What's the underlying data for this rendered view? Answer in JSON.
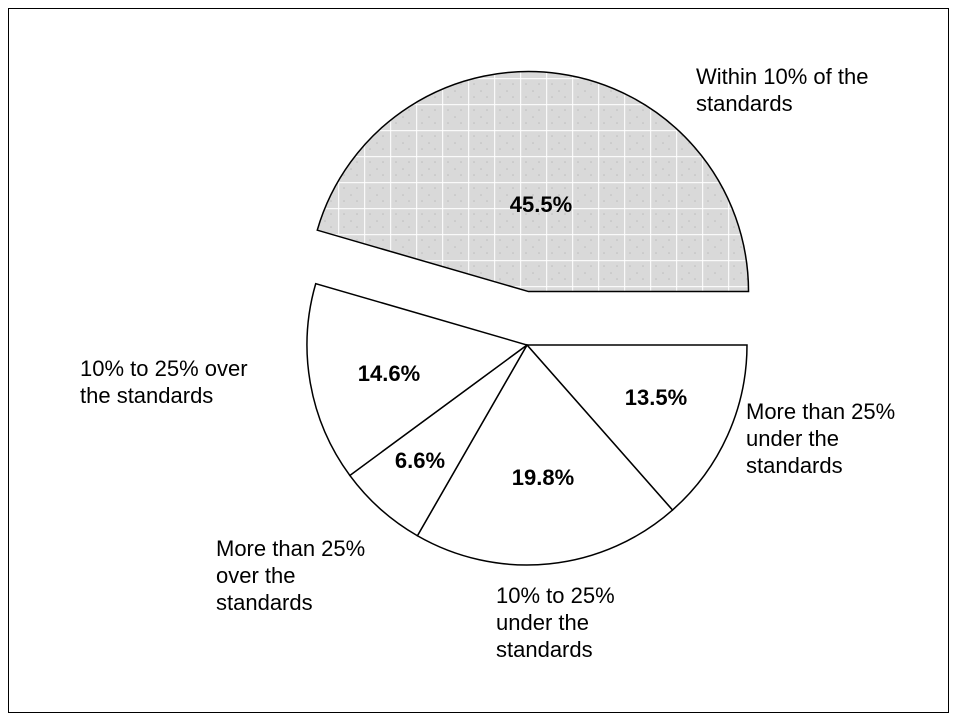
{
  "chart_data": {
    "type": "pie",
    "title": "",
    "slices": [
      {
        "label_lines": [
          "Within 10% of the",
          "standards"
        ],
        "value": 45.5,
        "display": "45.5%",
        "exploded": true,
        "fill": "pattern"
      },
      {
        "label_lines": [
          "More than 25%",
          "under the",
          "standards"
        ],
        "value": 13.5,
        "display": "13.5%",
        "exploded": false,
        "fill": "#ffffff"
      },
      {
        "label_lines": [
          "10% to 25%",
          "under the",
          "standards"
        ],
        "value": 19.8,
        "display": "19.8%",
        "exploded": false,
        "fill": "#ffffff"
      },
      {
        "label_lines": [
          "More than 25%",
          "over the",
          "standards"
        ],
        "value": 6.6,
        "display": "6.6%",
        "exploded": false,
        "fill": "#ffffff"
      },
      {
        "label_lines": [
          "10% to 25% over",
          "the standards"
        ],
        "value": 14.6,
        "display": "14.6%",
        "exploded": false,
        "fill": "#ffffff"
      }
    ],
    "legend": "none",
    "colors": {
      "pattern_base": "#dcdcdc",
      "pattern_grid": "#ffffff",
      "stroke": "#000000"
    }
  }
}
